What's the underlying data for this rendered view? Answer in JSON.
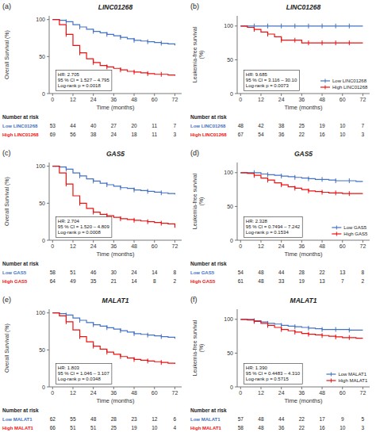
{
  "chart_data": [
    {
      "type": "step",
      "panel_label": "(a)",
      "title": "LINC01268",
      "y_label": "Overall Survival (%)",
      "x_label": "Time (months)",
      "annotation": "HR: 2.705\n95 % CI = 1.527 – 4.795\nLog-rank p = 0.0018",
      "x": [
        0,
        4,
        8,
        12,
        16,
        20,
        24,
        28,
        32,
        36,
        40,
        44,
        48,
        52,
        56,
        60,
        64,
        68,
        72
      ],
      "series": [
        {
          "name": "Low LINC01268",
          "color": "#4472C4",
          "values": [
            100,
            99,
            97,
            93,
            90,
            87,
            84,
            82,
            80,
            78,
            76,
            74,
            72,
            71,
            70,
            69,
            68,
            67,
            65
          ],
          "at_risk": [
            53,
            44,
            40,
            27,
            20,
            11,
            7
          ]
        },
        {
          "name": "High LINC01268",
          "color": "#EE1111",
          "values": [
            100,
            93,
            80,
            65,
            55,
            47,
            42,
            38,
            36,
            34,
            32,
            30,
            29,
            28,
            27,
            26,
            26,
            25,
            24
          ],
          "at_risk": [
            69,
            56,
            38,
            24,
            18,
            11,
            3
          ]
        }
      ],
      "at_risk_title": "Number at risk",
      "at_risk_x": [
        0,
        12,
        24,
        36,
        48,
        60,
        72
      ],
      "xlim": [
        -2,
        76
      ],
      "xticks": [
        0,
        12,
        24,
        36,
        48,
        60,
        72
      ],
      "ylim": [
        0,
        105
      ],
      "yticks": [
        0,
        50,
        100
      ],
      "grid": false
    },
    {
      "type": "step",
      "panel_label": "(b)",
      "title": "LINC01268",
      "y_label": "Leukemia-free survival\n(%)",
      "x_label": "Time (months)",
      "annotation": "HR: 9.685\n95 % CI = 3.116 – 30.10\nLog-rank p = 0.0073",
      "x": [
        0,
        4,
        8,
        12,
        16,
        20,
        24,
        28,
        32,
        36,
        40,
        44,
        48,
        52,
        56,
        60,
        64,
        68,
        72
      ],
      "series": [
        {
          "name": "Low LINC01268",
          "color": "#4472C4",
          "values": [
            100,
            100,
            100,
            100,
            100,
            100,
            100,
            100,
            100,
            100,
            100,
            100,
            100,
            100,
            100,
            100,
            100,
            100,
            100
          ],
          "at_risk": [
            48,
            42,
            38,
            25,
            19,
            10,
            7
          ]
        },
        {
          "name": "High LINC01268",
          "color": "#EE1111",
          "values": [
            100,
            98,
            95,
            91,
            88,
            84,
            79,
            79,
            79,
            75,
            75,
            75,
            75,
            75,
            75,
            75,
            75,
            75,
            75
          ],
          "at_risk": [
            67,
            54,
            36,
            22,
            16,
            10,
            3
          ]
        }
      ],
      "at_risk_title": "Number at risk",
      "at_risk_x": [
        0,
        12,
        24,
        36,
        48,
        60,
        72
      ],
      "xlim": [
        -2,
        76
      ],
      "xticks": [
        0,
        12,
        24,
        36,
        48,
        60,
        72
      ],
      "ylim": [
        0,
        115
      ],
      "yticks": [
        0,
        50,
        100
      ],
      "grid": false,
      "legend": "lower right"
    },
    {
      "type": "step",
      "panel_label": "(c)",
      "title": "GAS5",
      "y_label": "Overall Survival (%)",
      "x_label": "Time (months)",
      "annotation": "HR: 2.704\n95 % CI = 1.520 – 4.809\nLog-rank p = 0.0008",
      "x": [
        0,
        4,
        8,
        12,
        16,
        20,
        24,
        28,
        32,
        36,
        40,
        44,
        48,
        52,
        56,
        60,
        64,
        68,
        72
      ],
      "series": [
        {
          "name": "Low GAS5",
          "color": "#4472C4",
          "values": [
            100,
            99,
            96,
            91,
            87,
            83,
            80,
            77,
            75,
            73,
            71,
            70,
            68,
            67,
            66,
            65,
            64,
            63,
            62
          ],
          "at_risk": [
            58,
            51,
            46,
            30,
            24,
            14,
            8
          ]
        },
        {
          "name": "High GAS5",
          "color": "#EE1111",
          "values": [
            100,
            91,
            76,
            60,
            50,
            43,
            38,
            35,
            33,
            31,
            29,
            28,
            27,
            26,
            25,
            24,
            23,
            22,
            17
          ],
          "at_risk": [
            64,
            49,
            35,
            21,
            14,
            8,
            2
          ]
        }
      ],
      "at_risk_title": "Number at risk",
      "at_risk_x": [
        0,
        12,
        24,
        36,
        48,
        60,
        72
      ],
      "xlim": [
        -2,
        76
      ],
      "xticks": [
        0,
        12,
        24,
        36,
        48,
        60,
        72
      ],
      "ylim": [
        0,
        105
      ],
      "yticks": [
        0,
        50,
        100
      ],
      "grid": false
    },
    {
      "type": "step",
      "panel_label": "(d)",
      "title": "GAS5",
      "y_label": "Leukemia-free survival\n(%)",
      "x_label": "Time (months)",
      "annotation": "HR: 2.328\n95 % CI = 0.7494 – 7.242\nLog-rank p = 0.1534",
      "x": [
        0,
        4,
        8,
        12,
        16,
        20,
        24,
        28,
        32,
        36,
        40,
        44,
        48,
        52,
        56,
        60,
        64,
        68,
        72
      ],
      "series": [
        {
          "name": "Low GAS5",
          "color": "#4472C4",
          "values": [
            100,
            100,
            100,
            98,
            97,
            96,
            95,
            94,
            93,
            92,
            91,
            90,
            90,
            89,
            88,
            88,
            88,
            87,
            87
          ],
          "at_risk": [
            54,
            48,
            44,
            28,
            22,
            13,
            8
          ]
        },
        {
          "name": "High GAS5",
          "color": "#EE1111",
          "values": [
            100,
            99,
            96,
            92,
            89,
            85,
            82,
            79,
            77,
            75,
            73,
            72,
            71,
            70,
            70,
            69,
            69,
            69,
            69
          ],
          "at_risk": [
            61,
            48,
            33,
            19,
            13,
            7,
            2
          ]
        }
      ],
      "at_risk_title": "Number at risk",
      "at_risk_x": [
        0,
        12,
        24,
        36,
        48,
        60,
        72
      ],
      "xlim": [
        -2,
        76
      ],
      "xticks": [
        0,
        12,
        24,
        36,
        48,
        60,
        72
      ],
      "ylim": [
        0,
        115
      ],
      "yticks": [
        0,
        50,
        100
      ],
      "grid": false,
      "legend": "lower right"
    },
    {
      "type": "step",
      "panel_label": "(e)",
      "title": "MALAT1",
      "y_label": "Overall Survival (%)",
      "x_label": "Time (months)",
      "annotation": "HR: 1.803\n95 % CI = 1.046 – 3.107\nLog-rank p = 0.0348",
      "x": [
        0,
        4,
        8,
        12,
        16,
        20,
        24,
        28,
        32,
        36,
        40,
        44,
        48,
        52,
        56,
        60,
        64,
        68,
        72
      ],
      "series": [
        {
          "name": "Low MALAT1",
          "color": "#4472C4",
          "values": [
            100,
            99,
            97,
            93,
            90,
            87,
            84,
            82,
            80,
            78,
            76,
            74,
            72,
            71,
            70,
            69,
            68,
            67,
            65
          ],
          "at_risk": [
            62,
            55,
            48,
            28,
            23,
            12,
            6
          ]
        },
        {
          "name": "High MALAT1",
          "color": "#EE1111",
          "values": [
            100,
            96,
            88,
            77,
            68,
            61,
            55,
            51,
            47,
            44,
            41,
            39,
            37,
            36,
            35,
            34,
            33,
            32,
            31
          ],
          "at_risk": [
            66,
            51,
            51,
            25,
            19,
            10,
            4
          ]
        }
      ],
      "at_risk_title": "Number at risk",
      "at_risk_x": [
        0,
        12,
        24,
        36,
        48,
        60,
        72
      ],
      "xlim": [
        -2,
        76
      ],
      "xticks": [
        0,
        12,
        24,
        36,
        48,
        60,
        72
      ],
      "ylim": [
        0,
        105
      ],
      "yticks": [
        0,
        50,
        100
      ],
      "grid": false
    },
    {
      "type": "step",
      "panel_label": "(f)",
      "title": "MALAT1",
      "y_label": "Leukemia-free survival\n(%)",
      "x_label": "Time (months)",
      "annotation": "HR: 1.390\n95 % CI = 0.4483 – 4.310\nLog-rank p = 0.5715",
      "x": [
        0,
        4,
        8,
        12,
        16,
        20,
        24,
        28,
        32,
        36,
        40,
        44,
        48,
        52,
        56,
        60,
        64,
        68,
        72
      ],
      "series": [
        {
          "name": "Low MALAT1",
          "color": "#4472C4",
          "values": [
            100,
            100,
            98,
            96,
            94,
            93,
            91,
            90,
            89,
            88,
            87,
            86,
            85,
            85,
            85,
            85,
            84,
            84,
            84
          ],
          "at_risk": [
            57,
            48,
            44,
            22,
            17,
            9,
            5
          ]
        },
        {
          "name": "High MALAT1",
          "color": "#EE1111",
          "values": [
            100,
            99,
            97,
            94,
            91,
            88,
            85,
            83,
            81,
            79,
            78,
            77,
            76,
            75,
            74,
            73,
            73,
            72,
            72
          ],
          "at_risk": [
            58,
            48,
            36,
            22,
            16,
            10,
            3
          ]
        }
      ],
      "at_risk_title": "Number at risk",
      "at_risk_x": [
        0,
        12,
        24,
        36,
        48,
        60,
        72
      ],
      "xlim": [
        -2,
        76
      ],
      "xticks": [
        0,
        12,
        24,
        36,
        48,
        60,
        72
      ],
      "ylim": [
        0,
        115
      ],
      "yticks": [
        0,
        50,
        100
      ],
      "grid": false,
      "legend": "lower right"
    }
  ]
}
